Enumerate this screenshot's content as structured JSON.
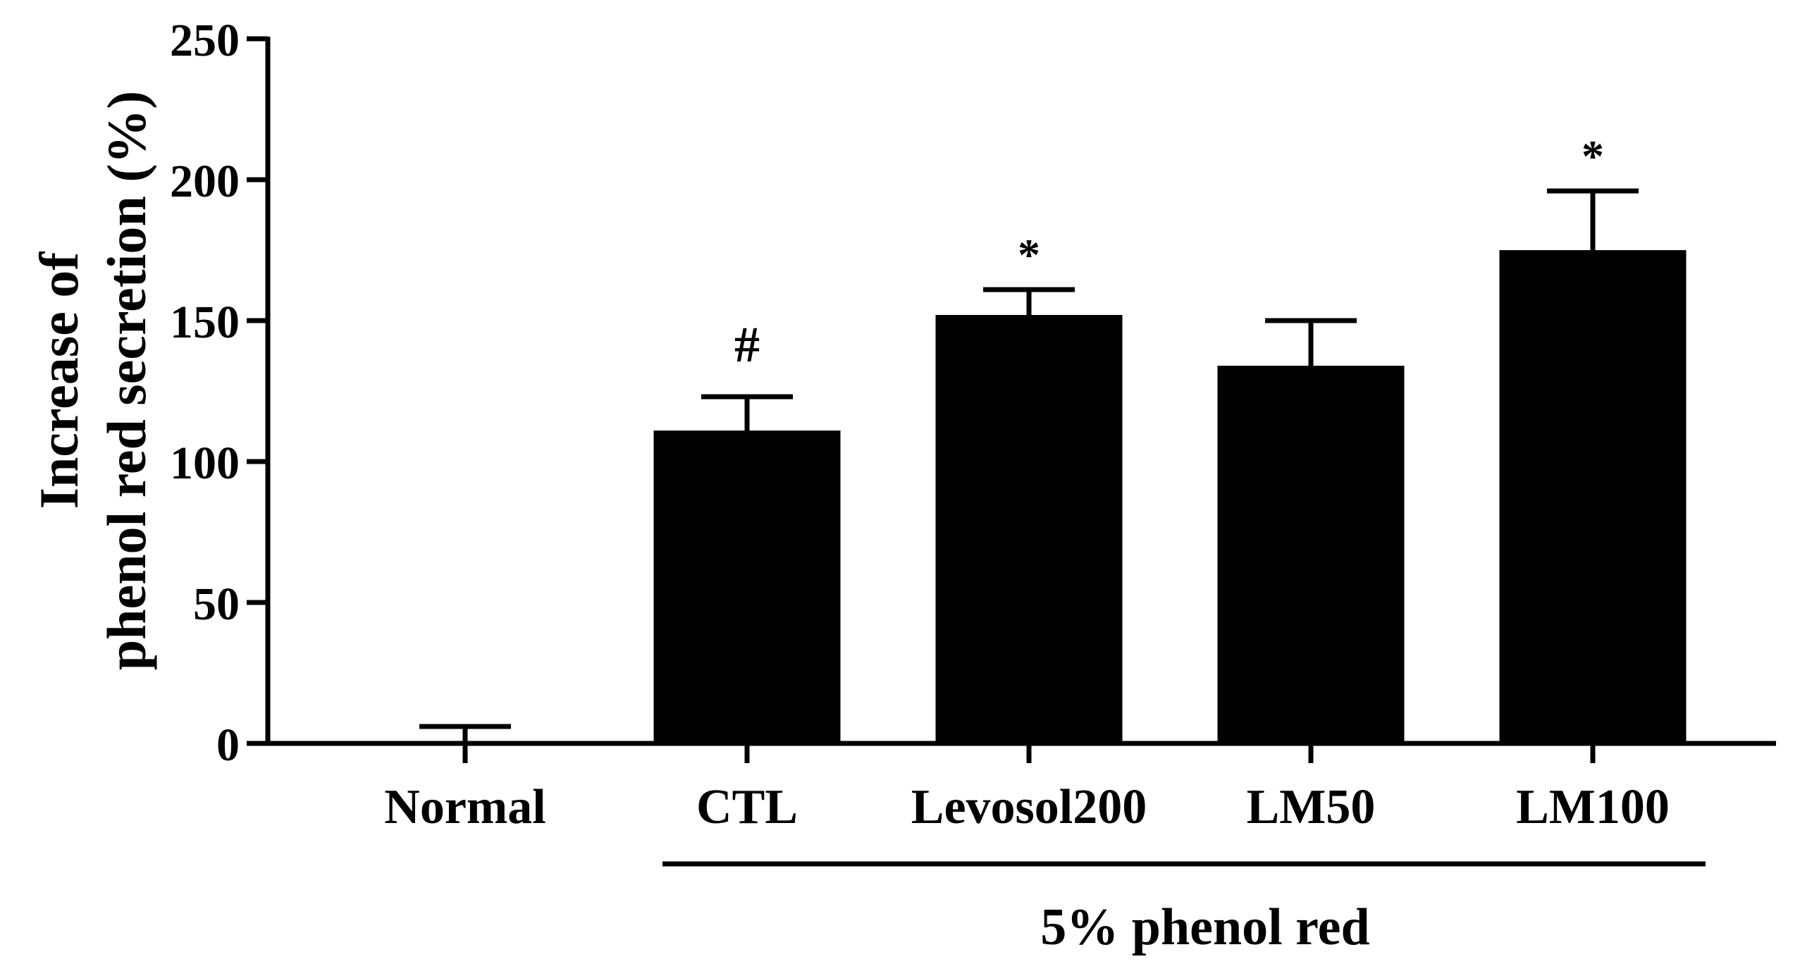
{
  "chart_data": {
    "type": "bar",
    "title": "",
    "ylabel_lines": [
      "Increase of",
      "phenol red secretion (%)"
    ],
    "xlabel": "",
    "categories": [
      "Normal",
      "CTL",
      "Levosol200",
      "LM50",
      "LM100"
    ],
    "values": [
      0,
      111,
      152,
      134,
      175
    ],
    "errors": [
      6,
      12,
      9,
      16,
      21
    ],
    "annotations": [
      "",
      "#",
      "*",
      "",
      "*"
    ],
    "ylim": [
      0,
      250
    ],
    "yticks": [
      "0",
      "50",
      "100",
      "150",
      "200",
      "250"
    ],
    "group_label": "5% phenol red",
    "group_categories": [
      "CTL",
      "Levosol200",
      "LM50",
      "LM100"
    ],
    "grid": false,
    "legend": "none",
    "bar_color": "#000000"
  }
}
